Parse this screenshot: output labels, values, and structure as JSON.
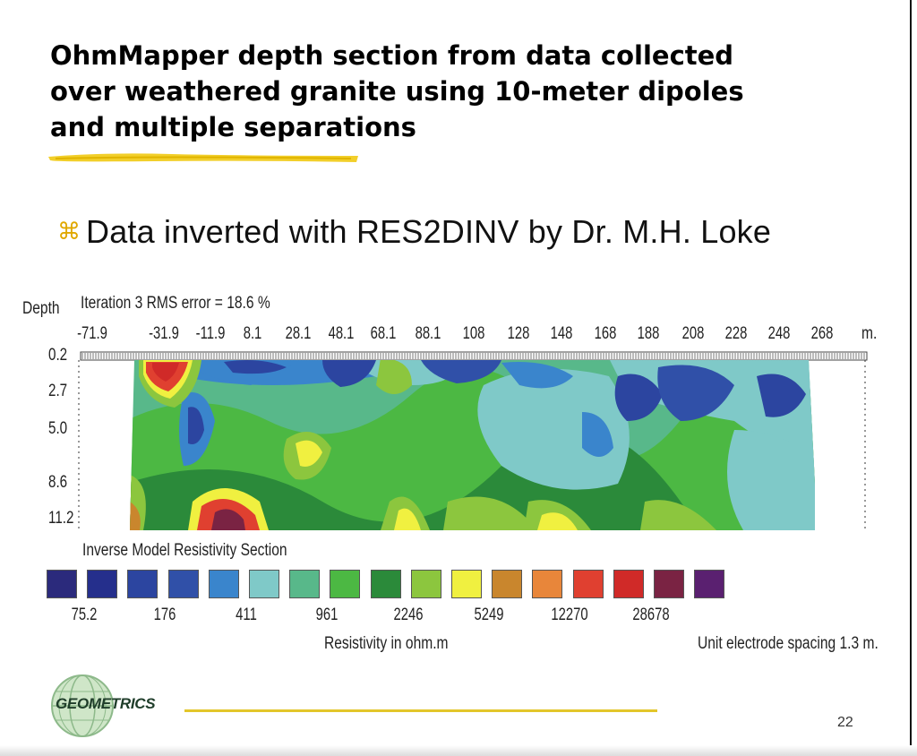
{
  "slide": {
    "title": "OhmMapper depth section from data collected over weathered granite using 10-meter dipoles and multiple separations",
    "bullet": "Data inverted with RES2DINV by Dr. M.H. Loke",
    "bullet_icon": "command-key-icon",
    "page_number": "22"
  },
  "section": {
    "depth_label": "Depth",
    "iteration_label": "Iteration 3 RMS error = 18.6 %",
    "unit_label": "m.",
    "x_ticks": [
      "-71.9",
      "-31.9",
      "-11.9",
      "8.1",
      "28.1",
      "48.1",
      "68.1",
      "88.1",
      "108",
      "128",
      "148",
      "168",
      "188",
      "208",
      "228",
      "248",
      "268"
    ],
    "depth_ticks": [
      "0.2",
      "2.7",
      "5.0",
      "8.6",
      "11.2"
    ],
    "model_title": "Inverse Model Resistivity Section",
    "axis_title": "Resistivity in ohm.m",
    "spacing_note": "Unit electrode spacing 1.3 m."
  },
  "legend": {
    "colors": [
      "#2b2a7c",
      "#252f8c",
      "#2c45a0",
      "#3050a8",
      "#3a85cc",
      "#7fc9c8",
      "#58b88a",
      "#4cb843",
      "#2b8a3a",
      "#8cc63e",
      "#f0f040",
      "#c9862d",
      "#e8863a",
      "#e04030",
      "#d02a28",
      "#7a2343",
      "#5a2070"
    ],
    "labels": [
      "75.2",
      "176",
      "411",
      "961",
      "2246",
      "5249",
      "12270",
      "28678"
    ]
  },
  "footer": {
    "logo_text": "GEOMETRICS",
    "logo_icon": "globe-icon"
  }
}
